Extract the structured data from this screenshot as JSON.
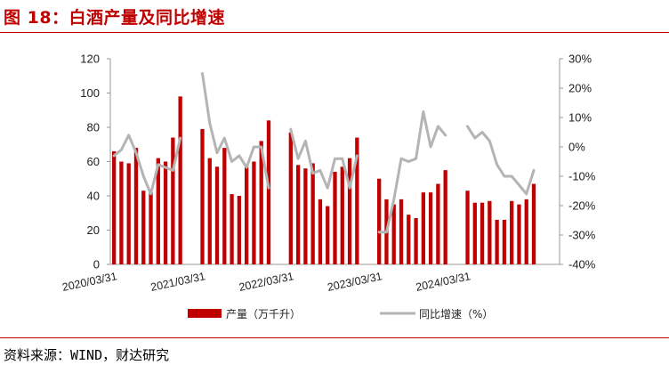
{
  "figure": {
    "title": "图 18：白酒产量及同比增速",
    "source": "资料来源：WIND，财达研究"
  },
  "colors": {
    "accent": "#c00000",
    "bar": "#c00000",
    "line": "#b4b4b4"
  },
  "chart_data": {
    "type": "bar",
    "title": "",
    "left_axis": {
      "min": 0,
      "max": 120,
      "ticks": [
        "0",
        "20",
        "40",
        "60",
        "80",
        "100",
        "120"
      ]
    },
    "right_axis": {
      "min": -40,
      "max": 30,
      "ticks": [
        "-40%",
        "-30%",
        "-20%",
        "-10%",
        "0%",
        "10%",
        "20%",
        "30%"
      ]
    },
    "x_tick_labels": [
      {
        "index": 0,
        "label": "2020/03/31"
      },
      {
        "index": 12,
        "label": "2021/03/31"
      },
      {
        "index": 24,
        "label": "2022/03/31"
      },
      {
        "index": 36,
        "label": "2023/03/31"
      },
      {
        "index": 48,
        "label": "2024/03/31"
      }
    ],
    "categories": [
      "2020-03",
      "2020-04",
      "2020-05",
      "2020-06",
      "2020-07",
      "2020-08",
      "2020-09",
      "2020-10",
      "2020-11",
      "2020-12",
      "2021-01",
      "2021-02",
      "2021-03",
      "2021-04",
      "2021-05",
      "2021-06",
      "2021-07",
      "2021-08",
      "2021-09",
      "2021-10",
      "2021-11",
      "2021-12",
      "2022-01",
      "2022-02",
      "2022-03",
      "2022-04",
      "2022-05",
      "2022-06",
      "2022-07",
      "2022-08",
      "2022-09",
      "2022-10",
      "2022-11",
      "2022-12",
      "2023-01",
      "2023-02",
      "2023-03",
      "2023-04",
      "2023-05",
      "2023-06",
      "2023-07",
      "2023-08",
      "2023-09",
      "2023-10",
      "2023-11",
      "2023-12",
      "2024-01",
      "2024-02",
      "2024-03",
      "2024-04",
      "2024-05",
      "2024-06",
      "2024-07",
      "2024-08",
      "2024-09",
      "2024-10",
      "2024-11",
      "2024-12",
      "2025-01",
      "2025-02",
      "2025-03"
    ],
    "series": [
      {
        "name": "产量（万千升）",
        "type": "bar",
        "axis": "left",
        "values": [
          66,
          60,
          59,
          68,
          43,
          42,
          62,
          60,
          74,
          98,
          null,
          null,
          79,
          62,
          57,
          68,
          41,
          40,
          57,
          60,
          72,
          84,
          null,
          null,
          77,
          58,
          56,
          59,
          38,
          34,
          54,
          57,
          62,
          74,
          null,
          null,
          50,
          38,
          35,
          38,
          29,
          27,
          42,
          42,
          47,
          55,
          null,
          null,
          43,
          36,
          36,
          37,
          26,
          26,
          37,
          35,
          38,
          47,
          null,
          null,
          null
        ]
      },
      {
        "name": "同比增速（%）",
        "type": "line",
        "axis": "right",
        "values": [
          -3,
          -1,
          4,
          -2,
          -10,
          -16,
          -6,
          -7,
          -8,
          3,
          null,
          null,
          25,
          8,
          -2,
          3,
          -5,
          -3,
          -7,
          0,
          0,
          -14,
          null,
          null,
          6,
          -4,
          2,
          -9,
          -8,
          -14,
          -4,
          -4,
          -14,
          -3,
          null,
          null,
          -29,
          -29,
          -18,
          -4,
          -5,
          -4,
          12,
          0,
          7,
          4,
          null,
          null,
          7,
          3,
          5,
          2,
          -6,
          -10,
          -10,
          -13,
          -16,
          -8,
          null,
          null,
          null
        ]
      }
    ],
    "legend": {
      "position": "bottom"
    },
    "grid": false
  }
}
